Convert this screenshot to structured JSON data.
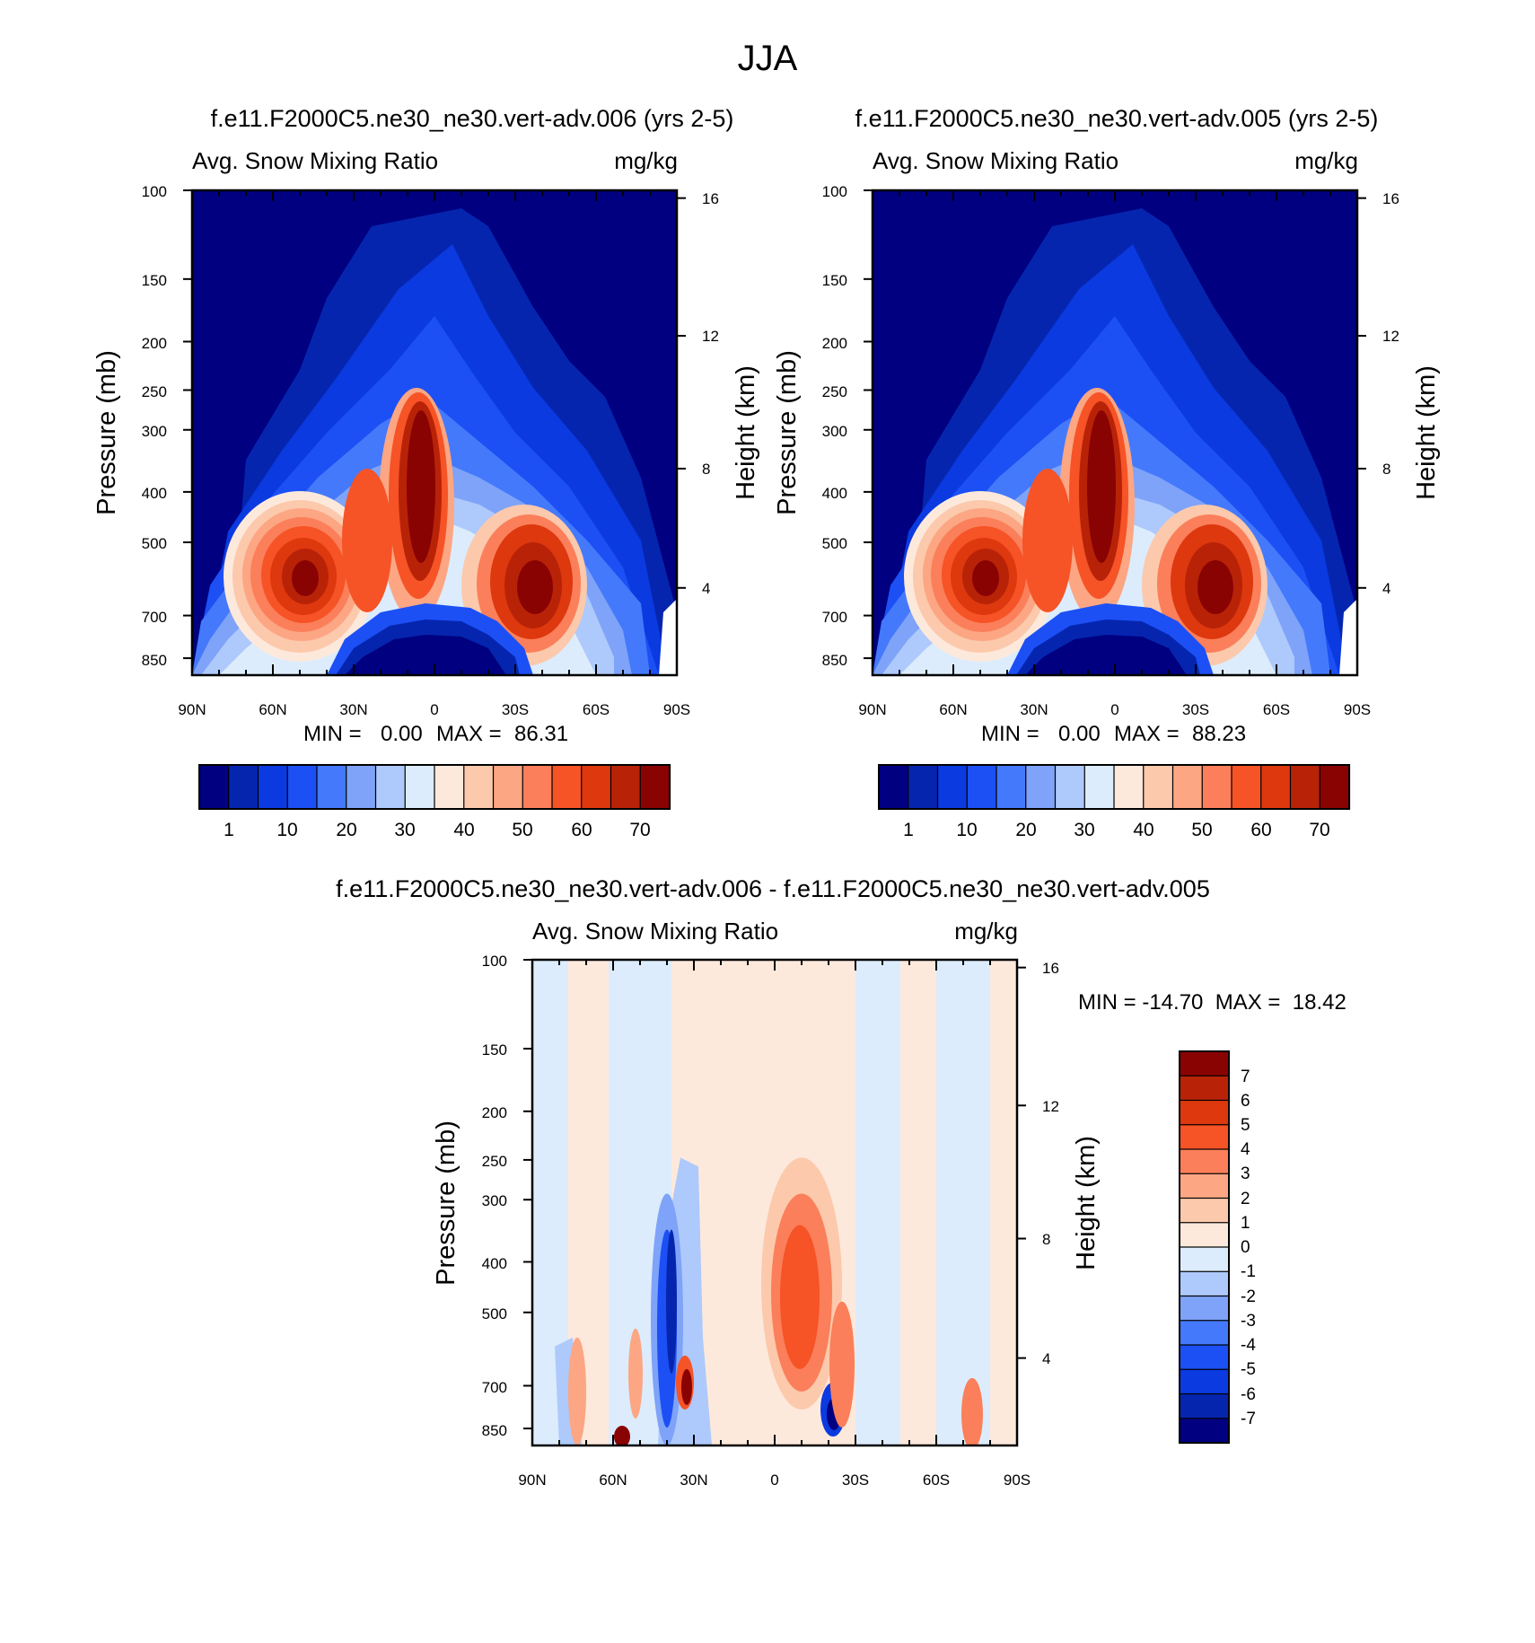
{
  "figure_title": "JJA",
  "chart_data": [
    {
      "id": "top-left",
      "type": "heatmap",
      "case_title": "f.e11.F2000C5.ne30_ne30.vert-adv.006 (yrs 2-5)",
      "variable": "Avg. Snow Mixing Ratio",
      "units": "mg/kg",
      "ylabel": "Pressure (mb)",
      "ylabel_right": "Height (km)",
      "x_ticks": [
        "90N",
        "60N",
        "30N",
        "0",
        "30S",
        "60S",
        "90S"
      ],
      "x_range": [
        90,
        -90
      ],
      "y_ticks": [
        "100",
        "150",
        "200",
        "250",
        "300",
        "400",
        "500",
        "700",
        "850"
      ],
      "y_range": [
        100,
        1000
      ],
      "height_ticks": [
        "16",
        "12",
        "8",
        "4"
      ],
      "stats": {
        "min_label": "MIN =",
        "min": "0.00",
        "max_label": "MAX =",
        "max": "86.31"
      },
      "colorbar_labels": [
        "1",
        "10",
        "20",
        "30",
        "40",
        "50",
        "60",
        "70"
      ],
      "contour_levels": [
        0.5,
        1,
        5,
        10,
        15,
        20,
        25,
        30,
        35,
        40,
        45,
        50,
        55,
        60,
        65,
        70
      ]
    },
    {
      "id": "top-right",
      "type": "heatmap",
      "case_title": "f.e11.F2000C5.ne30_ne30.vert-adv.005 (yrs 2-5)",
      "variable": "Avg. Snow Mixing Ratio",
      "units": "mg/kg",
      "ylabel": "Pressure (mb)",
      "ylabel_right": "Height (km)",
      "x_ticks": [
        "90N",
        "60N",
        "30N",
        "0",
        "30S",
        "60S",
        "90S"
      ],
      "x_range": [
        90,
        -90
      ],
      "y_ticks": [
        "100",
        "150",
        "200",
        "250",
        "300",
        "400",
        "500",
        "700",
        "850"
      ],
      "y_range": [
        100,
        1000
      ],
      "height_ticks": [
        "16",
        "12",
        "8",
        "4"
      ],
      "stats": {
        "min_label": "MIN =",
        "min": "0.00",
        "max_label": "MAX =",
        "max": "88.23"
      },
      "colorbar_labels": [
        "1",
        "10",
        "20",
        "30",
        "40",
        "50",
        "60",
        "70"
      ],
      "contour_levels": [
        0.5,
        1,
        5,
        10,
        15,
        20,
        25,
        30,
        35,
        40,
        45,
        50,
        55,
        60,
        65,
        70
      ]
    },
    {
      "id": "difference",
      "type": "heatmap",
      "case_title": "f.e11.F2000C5.ne30_ne30.vert-adv.006 - f.e11.F2000C5.ne30_ne30.vert-adv.005",
      "variable": "Avg. Snow Mixing Ratio",
      "units": "mg/kg",
      "ylabel": "Pressure (mb)",
      "ylabel_right": "Height (km)",
      "x_ticks": [
        "90N",
        "60N",
        "30N",
        "0",
        "30S",
        "60S",
        "90S"
      ],
      "x_range": [
        90,
        -90
      ],
      "y_ticks": [
        "100",
        "150",
        "200",
        "250",
        "300",
        "400",
        "500",
        "700",
        "850"
      ],
      "y_range": [
        100,
        1000
      ],
      "height_ticks": [
        "16",
        "12",
        "8",
        "4"
      ],
      "stats_text": "MIN = -14.70  MAX =  18.42",
      "colorbar_labels": [
        "7",
        "6",
        "5",
        "4",
        "3",
        "2",
        "1",
        "0",
        "-1",
        "-2",
        "-3",
        "-4",
        "-5",
        "-6",
        "-7"
      ],
      "contour_levels": [
        -7,
        -6,
        -5,
        -4,
        -3,
        -2,
        -1,
        0,
        1,
        2,
        3,
        4,
        5,
        6,
        7
      ]
    }
  ],
  "palettes": {
    "sequential": [
      "#000080",
      "#0625af",
      "#0a3ae0",
      "#1c50f5",
      "#4479fb",
      "#7ea3f8",
      "#aec9fb",
      "#dcecfc",
      "#fde9dc",
      "#fcc9ac",
      "#fca683",
      "#fb7f5a",
      "#f65326",
      "#de380e",
      "#b82308",
      "#8a0303"
    ],
    "diverging": [
      "#000080",
      "#0625af",
      "#0a3ae0",
      "#1c50f5",
      "#4479fb",
      "#7ea3f8",
      "#aec9fb",
      "#dcecfc",
      "#fde9dc",
      "#fcc9ac",
      "#fca683",
      "#fb7f5a",
      "#f65326",
      "#de380e",
      "#b82308",
      "#8a0303"
    ]
  }
}
